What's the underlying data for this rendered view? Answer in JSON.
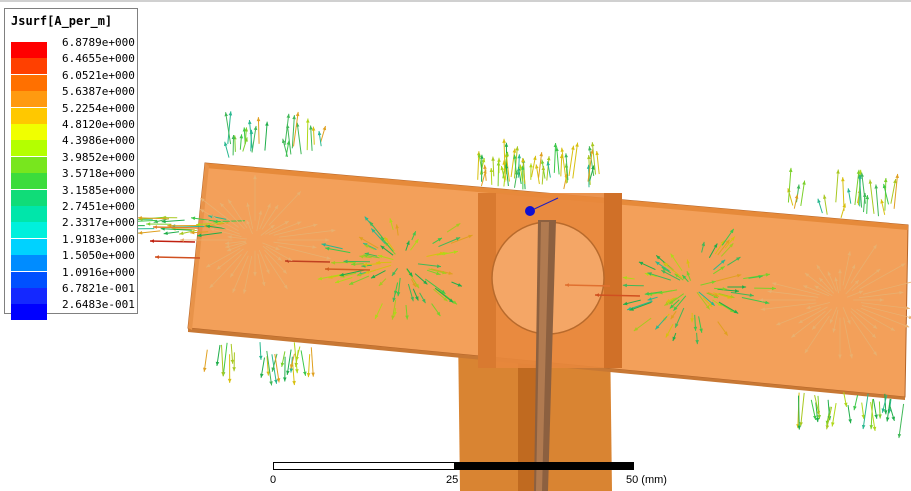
{
  "legend": {
    "title": "Jsurf[A_per_m]",
    "entries": [
      {
        "value": "6.8789e+000",
        "color": "#ff0000"
      },
      {
        "value": "6.4655e+000",
        "color": "#ff4000"
      },
      {
        "value": "6.0521e+000",
        "color": "#ff7000"
      },
      {
        "value": "5.6387e+000",
        "color": "#ff9a10"
      },
      {
        "value": "5.2254e+000",
        "color": "#ffc800"
      },
      {
        "value": "4.8120e+000",
        "color": "#f0ff00"
      },
      {
        "value": "4.3986e+000",
        "color": "#b4ff00"
      },
      {
        "value": "3.9852e+000",
        "color": "#78e61e"
      },
      {
        "value": "3.5718e+000",
        "color": "#3cdc3c"
      },
      {
        "value": "3.1585e+000",
        "color": "#10dc78"
      },
      {
        "value": "2.7451e+000",
        "color": "#00e6aa"
      },
      {
        "value": "2.3317e+000",
        "color": "#00f0dc"
      },
      {
        "value": "1.9183e+000",
        "color": "#00d2ff"
      },
      {
        "value": "1.5050e+000",
        "color": "#008cff"
      },
      {
        "value": "1.0916e+000",
        "color": "#0050ff"
      },
      {
        "value": "6.7821e-001",
        "color": "#1428ff"
      },
      {
        "value": "2.6483e-001",
        "color": "#0000ff"
      }
    ]
  },
  "scale": {
    "tick_0": "0",
    "tick_25": "25",
    "tick_50": "50 (mm)"
  },
  "colors": {
    "patch": "#f09a50",
    "patch_edge": "#b46428",
    "feed": "#d07a2a",
    "feed_dark": "#a85a18"
  },
  "icons": {
    "probe_marker": "blue-dot-icon"
  }
}
